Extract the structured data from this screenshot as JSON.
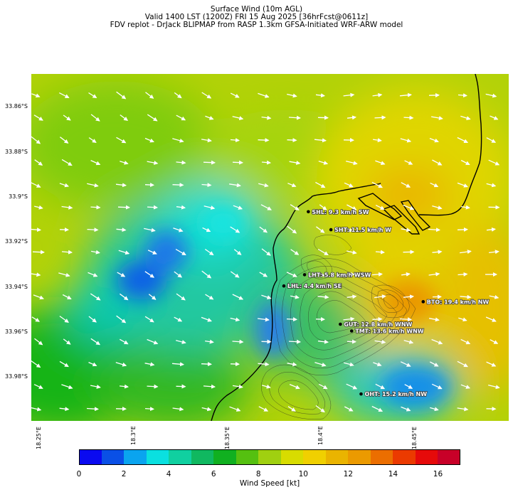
{
  "titles": [
    "Surface Wind (10m AGL)",
    "Valid 1400 LST (1200Z) FRI 15 Aug 2025 [36hrFcst@0611z]",
    "FDV replot - DrJack BLIPMAP from RASP 1.3km GFSA-Initiated WRF-ARW model"
  ],
  "lat_labels": [
    "33.86°S",
    "33.88°S",
    "33.9°S",
    "33.92°S",
    "33.94°S",
    "33.96°S",
    "33.98°S"
  ],
  "lon_labels": [
    "18.25°E",
    "18.3°E",
    "18.35°E",
    "18.4°E",
    "18.45°E"
  ],
  "stations": [
    {
      "code": "SHL",
      "label": "SHL: 9.3 km/h SW",
      "lon": 18.393,
      "lat": -33.907
    },
    {
      "code": "SHT",
      "label": "SHT: 11.5 km/h W",
      "lon": 18.405,
      "lat": -33.915
    },
    {
      "code": "LHT",
      "label": "LHT: 5.8 km/h WSW",
      "lon": 18.391,
      "lat": -33.935
    },
    {
      "code": "LHL",
      "label": "LHL: 4.4 km/h SE",
      "lon": 18.38,
      "lat": -33.94
    },
    {
      "code": "BTO",
      "label": "BTO: 19.4 km/h NW",
      "lon": 18.454,
      "lat": -33.947
    },
    {
      "code": "GUT",
      "label": "GUT: 12.8 km/h WNW",
      "lon": 18.41,
      "lat": -33.957
    },
    {
      "code": "TMT",
      "label": "TMT: 13.6 km/h WNW",
      "lon": 18.416,
      "lat": -33.96
    },
    {
      "code": "OHT",
      "label": "OHT: 15.2 km/h NW",
      "lon": 18.421,
      "lat": -33.988
    }
  ],
  "colorbar": {
    "label": "Wind Speed [kt]",
    "min": 0,
    "max": 17,
    "colors": [
      "#0a0af0",
      "#0a50e6",
      "#0aa4ef",
      "#0ae0e0",
      "#10d0a0",
      "#10b860",
      "#10b020",
      "#55c010",
      "#a0d010",
      "#d8dc00",
      "#f0d000",
      "#eab400",
      "#eb9a00",
      "#eb6e00",
      "#eb3a00",
      "#e60a0a",
      "#c80028"
    ],
    "ticks": [
      "0",
      "2",
      "4",
      "6",
      "8",
      "10",
      "12",
      "14",
      "16"
    ]
  }
}
